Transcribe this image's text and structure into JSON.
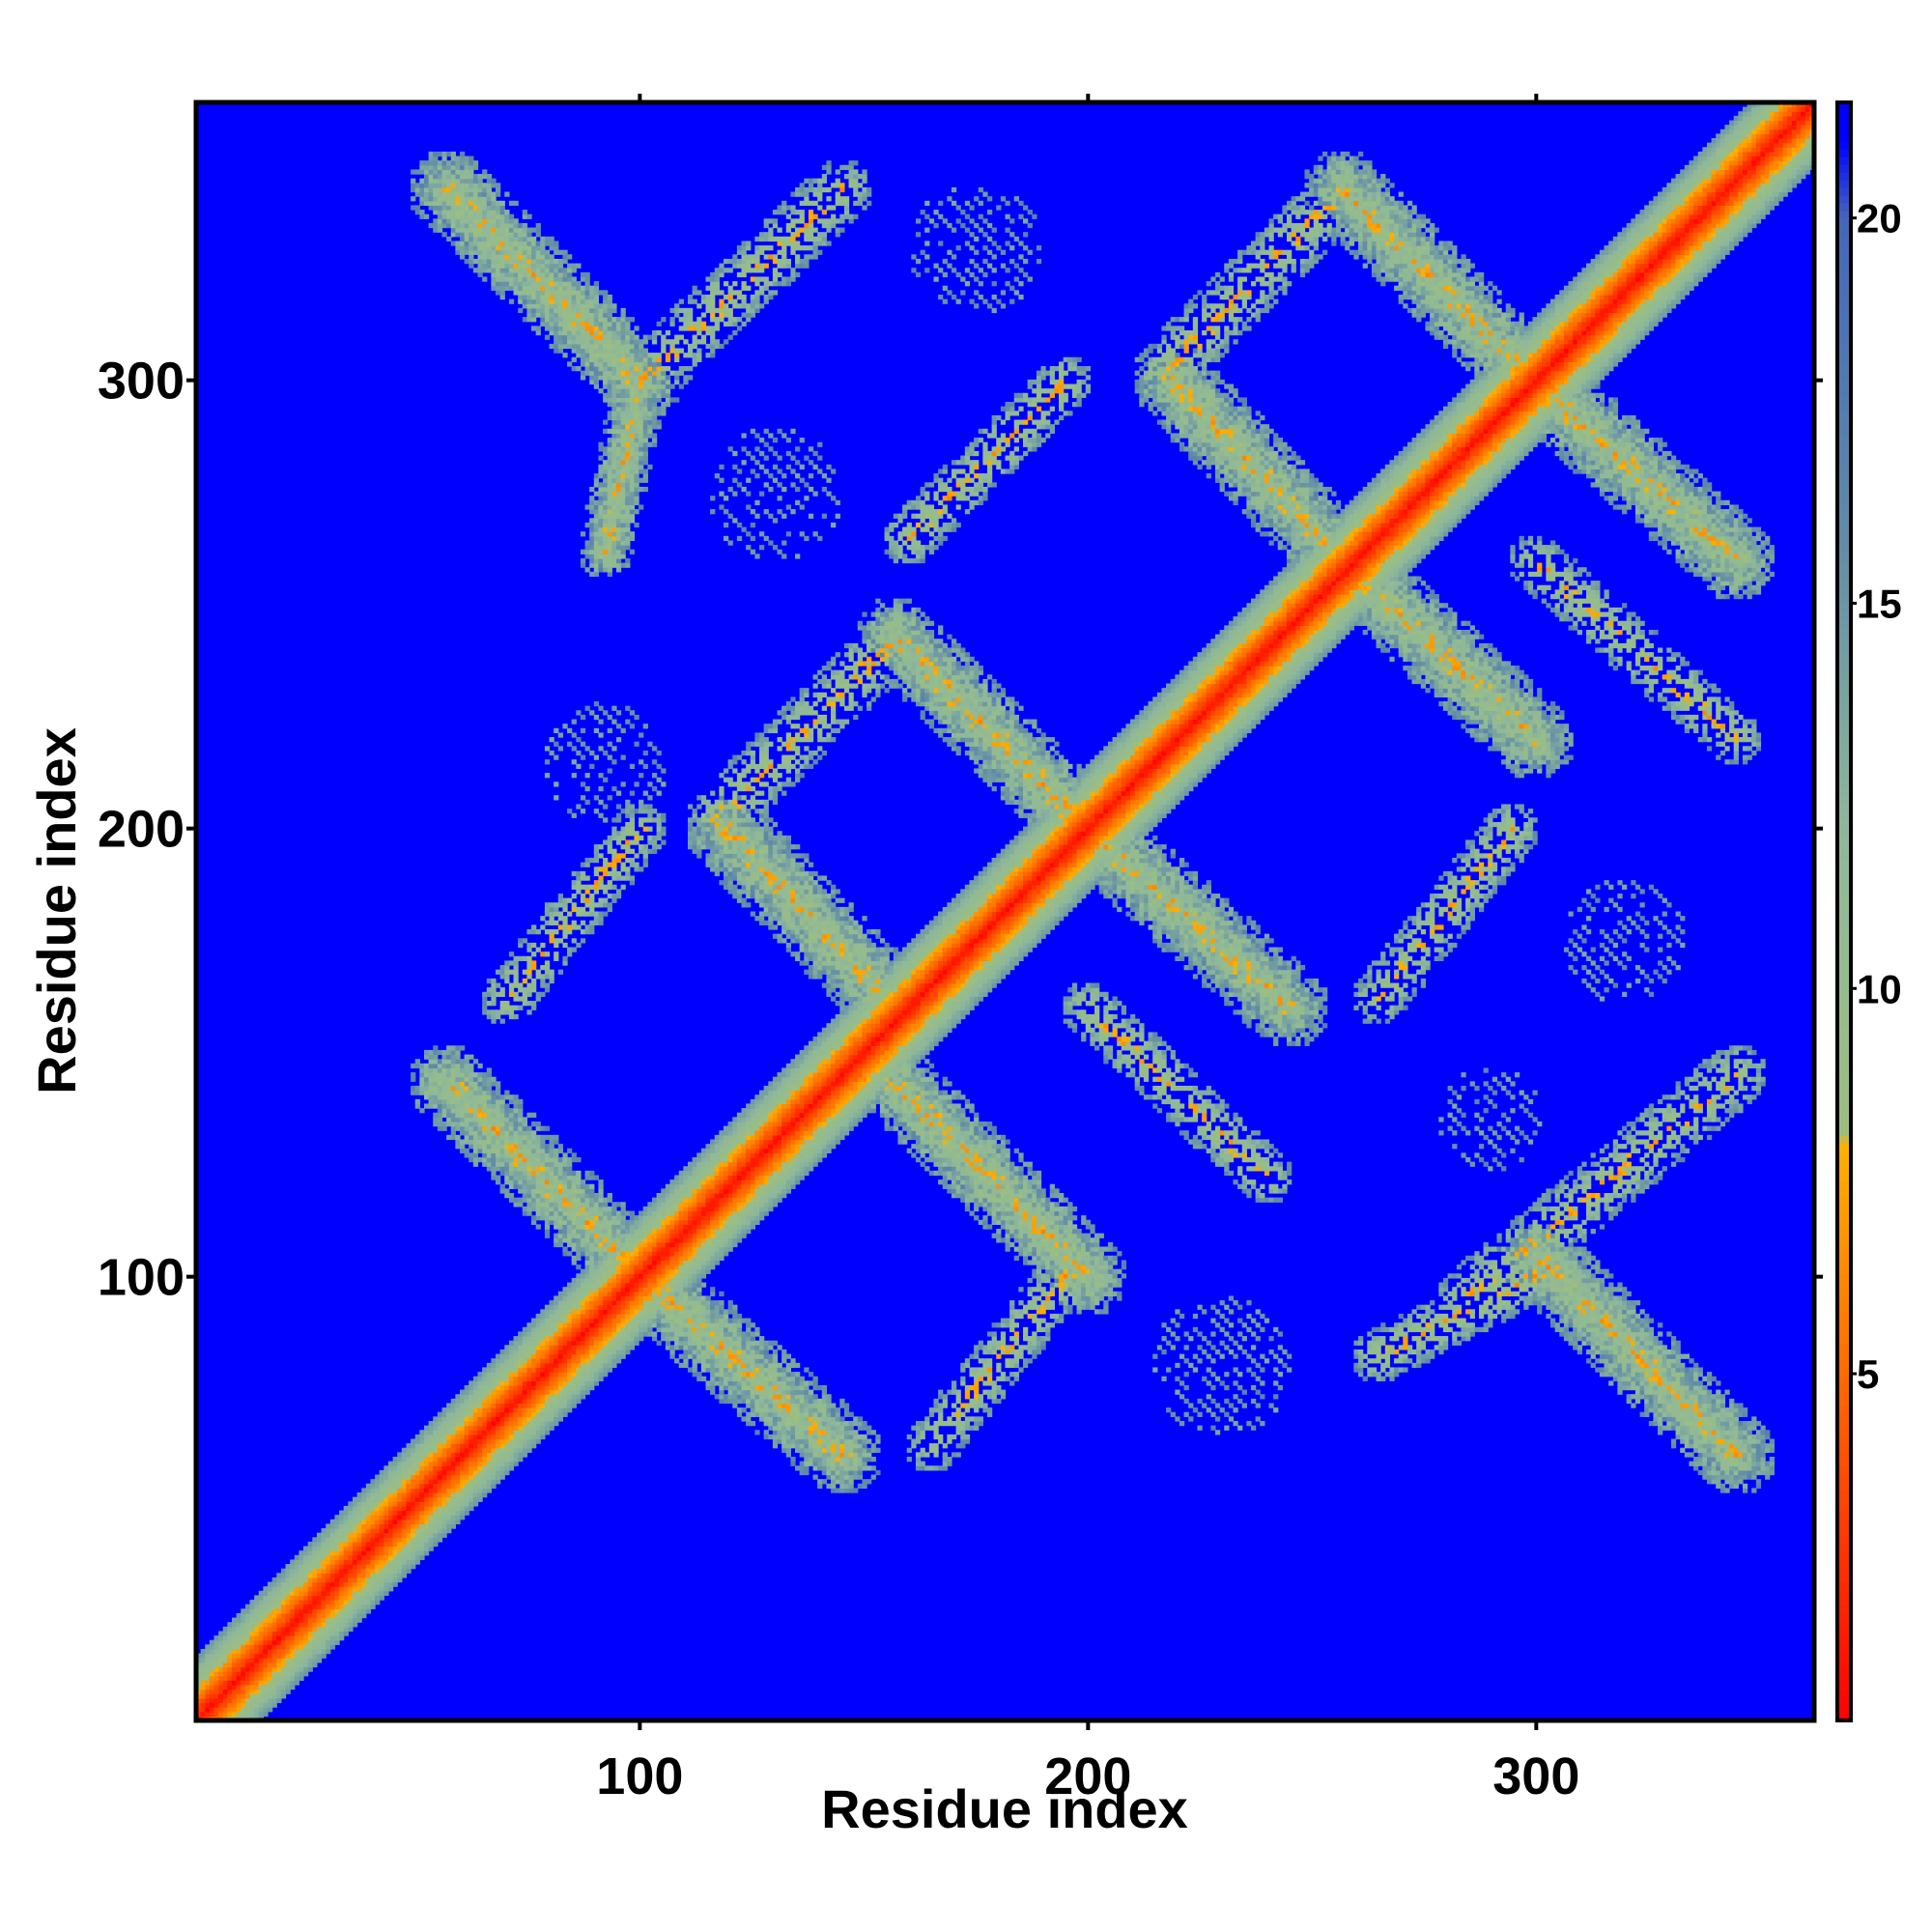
{
  "chart_data": {
    "type": "heatmap",
    "title": "",
    "xlabel": "Residue index",
    "ylabel": "Residue index",
    "xlim": [
      1,
      362
    ],
    "ylim": [
      1,
      362
    ],
    "x_ticks": [
      100,
      200,
      300
    ],
    "y_ticks": [
      100,
      200,
      300
    ],
    "colorbar": {
      "range": [
        0.5,
        21.5
      ],
      "ticks": [
        5,
        10,
        15,
        20
      ],
      "stops": [
        {
          "value": 0.5,
          "color": "#ff0000"
        },
        {
          "value": 5.0,
          "color": "#ff6a00"
        },
        {
          "value": 8.0,
          "color": "#ffb000"
        },
        {
          "value": 8.1,
          "color": "#9cbf80"
        },
        {
          "value": 12.0,
          "color": "#8fb89a"
        },
        {
          "value": 16.0,
          "color": "#5f8aa8"
        },
        {
          "value": 20.0,
          "color": "#4466bb"
        },
        {
          "value": 21.0,
          "color": "#0000ff"
        }
      ]
    },
    "background_value": 21,
    "background_color": "#0000ff",
    "contact_bands": [
      {
        "name": "main-diagonal",
        "from": [
          1,
          1
        ],
        "to": [
          362,
          362
        ],
        "width": 10
      },
      {
        "from": [
          57,
          343
        ],
        "to": [
          100,
          300
        ],
        "width": 9
      },
      {
        "from": [
          100,
          300
        ],
        "to": [
          145,
          343
        ],
        "width": 7,
        "sparse": true
      },
      {
        "from": [
          92,
          262
        ],
        "to": [
          100,
          300
        ],
        "width": 6
      },
      {
        "from": [
          57,
          143
        ],
        "to": [
          100,
          100
        ],
        "width": 9
      },
      {
        "from": [
          100,
          100
        ],
        "to": [
          145,
          60
        ],
        "width": 9
      },
      {
        "from": [
          157,
          243
        ],
        "to": [
          200,
          200
        ],
        "width": 9
      },
      {
        "from": [
          200,
          200
        ],
        "to": [
          245,
          160
        ],
        "width": 9
      },
      {
        "from": [
          157,
          143
        ],
        "to": [
          200,
          100
        ],
        "width": 9
      },
      {
        "from": [
          119,
          200
        ],
        "to": [
          157,
          160
        ],
        "width": 9
      },
      {
        "from": [
          117,
          202
        ],
        "to": [
          157,
          243
        ],
        "width": 7,
        "sparse": true
      },
      {
        "from": [
          200,
          160
        ],
        "to": [
          240,
          122
        ],
        "width": 6,
        "sparse": true
      },
      {
        "from": [
          257,
          343
        ],
        "to": [
          300,
          300
        ],
        "width": 9
      },
      {
        "from": [
          300,
          300
        ],
        "to": [
          345,
          260
        ],
        "width": 9
      },
      {
        "from": [
          219,
          300
        ],
        "to": [
          257,
          260
        ],
        "width": 9
      },
      {
        "from": [
          257,
          260
        ],
        "to": [
          300,
          220
        ],
        "width": 9
      },
      {
        "from": [
          217,
          302
        ],
        "to": [
          257,
          343
        ],
        "width": 7,
        "sparse": true
      },
      {
        "from": [
          300,
          260
        ],
        "to": [
          345,
          220
        ],
        "width": 6,
        "sparse": true
      },
      {
        "from": [
          285,
          95
        ],
        "to": [
          345,
          145
        ],
        "width": 7,
        "sparse": true
      },
      {
        "from": [
          300,
          105
        ],
        "to": [
          345,
          60
        ],
        "width": 9
      },
      {
        "from": [
          265,
          82
        ],
        "to": [
          300,
          100
        ],
        "width": 6,
        "sparse": true
      },
      {
        "from": [
          165,
          62
        ],
        "to": [
          195,
          100
        ],
        "width": 6,
        "sparse": true
      },
      {
        "from": [
          70,
          162
        ],
        "to": [
          100,
          200
        ],
        "width": 6,
        "sparse": true
      },
      {
        "from": [
          160,
          265
        ],
        "to": [
          195,
          300
        ],
        "width": 6,
        "sparse": true
      },
      {
        "from": [
          265,
          162
        ],
        "to": [
          295,
          200
        ],
        "width": 6,
        "sparse": true
      }
    ],
    "sparse_patches": [
      {
        "center": [
          175,
          330
        ],
        "radius": 15
      },
      {
        "center": [
          130,
          275
        ],
        "radius": 15
      },
      {
        "center": [
          92,
          215
        ],
        "radius": 14
      },
      {
        "center": [
          230,
          80
        ],
        "radius": 16
      },
      {
        "center": [
          320,
          175
        ],
        "radius": 14
      },
      {
        "center": [
          290,
          135
        ],
        "radius": 12
      }
    ]
  }
}
